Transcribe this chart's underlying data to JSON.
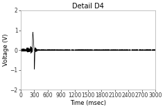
{
  "title": "Detail D4",
  "xlabel": "Time (msec)",
  "ylabel": "Voltage (V)",
  "xlim": [
    0,
    3000
  ],
  "ylim": [
    -2.0,
    2.0
  ],
  "xticks": [
    0,
    300,
    600,
    900,
    1200,
    1500,
    1800,
    2100,
    2400,
    2700,
    3000
  ],
  "yticks": [
    -2.0,
    -1.0,
    0.0,
    1.0,
    2.0
  ],
  "signal_color": "#000000",
  "dashed_color": "#000000",
  "background_color": "#ffffff",
  "title_fontsize": 7,
  "label_fontsize": 6,
  "tick_fontsize": 5.5,
  "spine_color": "#aaaaaa"
}
